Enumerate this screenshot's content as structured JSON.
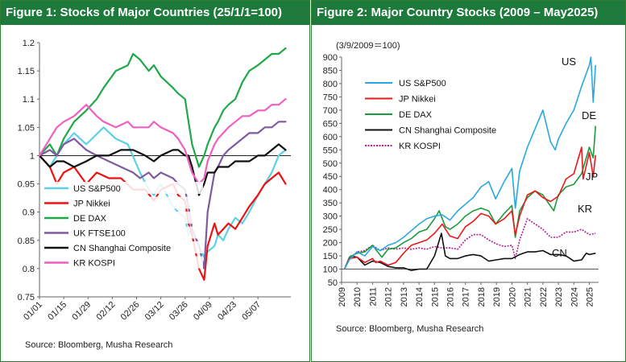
{
  "figures": [
    {
      "title": "Figure 1: Stocks of Major Countries (25/1/1=100)",
      "source": "Source: Bloomberg, Musha Research"
    },
    {
      "title": "Figure 2: Major Country Stocks (2009 – May2025)",
      "source": "Source: Bloomberg, Musha Research",
      "unit_note": "(3/9/2009＝100)"
    }
  ],
  "chart_data": [
    {
      "type": "line",
      "title": "Figure 1: Stocks of Major Countries (25/1/1=100)",
      "xlabel": "",
      "ylabel": "",
      "grid": false,
      "legend_placement": "bottom-left",
      "x_ticks": [
        "01/01",
        "01/15",
        "01/29",
        "02/12",
        "02/26",
        "03/12",
        "03/26",
        "04/09",
        "04/23",
        "05/07"
      ],
      "ylim": [
        0.75,
        1.2
      ],
      "y_ticks": [
        0.75,
        0.8,
        0.85,
        0.9,
        0.95,
        1,
        1.05,
        1.1,
        1.15,
        1.2
      ],
      "x_range_days": [
        0,
        145
      ],
      "baseline": 1,
      "series": [
        {
          "name": "US S&P500",
          "color": "#5bd0e6",
          "x": [
            0,
            6,
            14,
            20,
            27,
            37,
            44,
            51,
            58,
            63,
            66,
            70,
            77,
            80,
            84,
            86,
            88,
            92,
            95,
            97,
            101,
            103,
            106,
            109,
            113,
            117,
            121,
            126,
            130,
            134,
            138,
            142
          ],
          "y": [
            1.0,
            0.98,
            1.02,
            1.04,
            1.02,
            1.05,
            1.03,
            1.02,
            0.97,
            0.94,
            0.93,
            0.95,
            0.91,
            0.9,
            0.89,
            0.86,
            0.87,
            0.84,
            0.82,
            0.83,
            0.84,
            0.86,
            0.85,
            0.87,
            0.89,
            0.88,
            0.9,
            0.93,
            0.95,
            0.97,
            1.0,
            1.01
          ]
        },
        {
          "name": "JP Nikkei",
          "color": "#ee1111",
          "x": [
            0,
            6,
            10,
            14,
            20,
            27,
            33,
            40,
            47,
            54,
            61,
            66,
            70,
            77,
            80,
            84,
            86,
            88,
            92,
            95,
            97,
            101,
            103,
            106,
            109,
            113,
            117,
            121,
            126,
            130,
            134,
            138,
            142
          ],
          "y": [
            1.0,
            0.98,
            0.95,
            0.97,
            0.98,
            0.95,
            0.97,
            0.96,
            0.96,
            0.94,
            0.94,
            0.92,
            0.94,
            0.95,
            0.93,
            0.92,
            0.88,
            0.86,
            0.8,
            0.78,
            0.84,
            0.88,
            0.86,
            0.87,
            0.88,
            0.87,
            0.89,
            0.91,
            0.93,
            0.95,
            0.96,
            0.97,
            0.95
          ]
        },
        {
          "name": "DE DAX",
          "color": "#1fa84a",
          "x": [
            0,
            6,
            10,
            14,
            20,
            27,
            33,
            37,
            44,
            51,
            54,
            58,
            63,
            66,
            70,
            77,
            80,
            84,
            86,
            88,
            92,
            95,
            97,
            101,
            103,
            106,
            109,
            113,
            117,
            121,
            126,
            130,
            134,
            138,
            142
          ],
          "y": [
            1.0,
            1.02,
            1.0,
            1.03,
            1.06,
            1.08,
            1.1,
            1.12,
            1.15,
            1.16,
            1.18,
            1.17,
            1.15,
            1.16,
            1.14,
            1.12,
            1.11,
            1.1,
            1.06,
            1.02,
            0.98,
            1.0,
            1.02,
            1.05,
            1.06,
            1.08,
            1.09,
            1.1,
            1.13,
            1.15,
            1.16,
            1.17,
            1.18,
            1.18,
            1.19
          ]
        },
        {
          "name": "UK FTSE100",
          "color": "#7e5aa0",
          "x": [
            0,
            6,
            10,
            14,
            20,
            27,
            33,
            40,
            47,
            54,
            58,
            63,
            66,
            70,
            77,
            80,
            84,
            86,
            88,
            92,
            95,
            97,
            101,
            103,
            106,
            109,
            113,
            117,
            121,
            126,
            130,
            134,
            138,
            142
          ],
          "y": [
            1.0,
            1.01,
            1.0,
            1.02,
            1.03,
            1.01,
            1.0,
            0.99,
            0.98,
            0.97,
            0.96,
            0.97,
            0.96,
            0.97,
            0.96,
            0.95,
            0.94,
            0.91,
            0.87,
            0.84,
            0.8,
            0.9,
            0.97,
            0.98,
            1.0,
            1.01,
            1.02,
            1.03,
            1.04,
            1.04,
            1.05,
            1.05,
            1.06,
            1.06
          ]
        },
        {
          "name": "CN Shanghai Composite",
          "color": "#111111",
          "x": [
            0,
            6,
            10,
            14,
            20,
            27,
            33,
            40,
            47,
            54,
            61,
            66,
            70,
            77,
            80,
            84,
            86,
            88,
            92,
            95,
            97,
            101,
            103,
            106,
            109,
            113,
            117,
            121,
            126,
            130,
            134,
            138,
            142
          ],
          "y": [
            1.0,
            0.98,
            0.99,
            0.99,
            0.98,
            0.99,
            1.0,
            1.0,
            1.01,
            1.01,
            1.0,
            0.99,
            1.0,
            1.01,
            1.01,
            1.0,
            1.0,
            0.98,
            0.93,
            0.95,
            0.97,
            0.97,
            0.98,
            0.98,
            0.98,
            0.99,
            0.99,
            0.99,
            1.0,
            1.0,
            1.01,
            1.02,
            1.01
          ]
        },
        {
          "name": "KR KOSPI",
          "color": "#f05fc0",
          "x": [
            0,
            6,
            10,
            14,
            20,
            27,
            33,
            37,
            44,
            51,
            54,
            58,
            63,
            66,
            70,
            77,
            80,
            84,
            86,
            88,
            92,
            95,
            97,
            101,
            103,
            106,
            109,
            113,
            117,
            121,
            126,
            130,
            134,
            138,
            142
          ],
          "y": [
            1.0,
            1.03,
            1.05,
            1.06,
            1.07,
            1.09,
            1.07,
            1.06,
            1.05,
            1.06,
            1.05,
            1.05,
            1.05,
            1.06,
            1.05,
            1.04,
            1.03,
            1.01,
            0.99,
            0.97,
            0.95,
            0.96,
            0.99,
            1.02,
            1.03,
            1.04,
            1.05,
            1.06,
            1.07,
            1.07,
            1.08,
            1.08,
            1.09,
            1.09,
            1.1
          ]
        }
      ]
    },
    {
      "type": "line",
      "title": "Figure 2: Major Country Stocks (2009 – May2025)",
      "xlabel": "",
      "ylabel": "(3/9/2009＝100)",
      "grid": false,
      "legend_placement": "top-left",
      "x_ticks": [
        2009,
        2010,
        2011,
        2012,
        2013,
        2014,
        2015,
        2016,
        2017,
        2018,
        2019,
        2020,
        2021,
        2022,
        2023,
        2024,
        2025
      ],
      "xlim": [
        2009,
        2025.6
      ],
      "ylim": [
        50,
        900
      ],
      "y_ticks": [
        50,
        100,
        150,
        200,
        250,
        300,
        350,
        400,
        450,
        500,
        550,
        600,
        650,
        700,
        750,
        800,
        850,
        900
      ],
      "end_labels": [
        "US",
        "DE",
        "JP",
        "KR",
        "CN"
      ],
      "series": [
        {
          "name": "US S&P500",
          "color": "#29a8e0",
          "line_style": "solid",
          "end_label": "US",
          "x": [
            2009.18,
            2009.5,
            2010,
            2010.5,
            2011,
            2011.5,
            2012,
            2012.5,
            2013,
            2013.5,
            2014,
            2014.5,
            2015,
            2015.5,
            2016,
            2016.5,
            2017,
            2017.5,
            2018,
            2018.5,
            2018.95,
            2019.5,
            2020,
            2020.22,
            2020.5,
            2021,
            2021.5,
            2022,
            2022.5,
            2022.8,
            2023,
            2023.5,
            2024,
            2024.5,
            2025,
            2025.1,
            2025.25,
            2025.4
          ],
          "y": [
            100,
            135,
            165,
            150,
            185,
            170,
            190,
            200,
            220,
            245,
            270,
            290,
            300,
            305,
            285,
            320,
            345,
            370,
            410,
            430,
            365,
            430,
            480,
            330,
            470,
            560,
            630,
            700,
            580,
            550,
            590,
            650,
            700,
            790,
            870,
            900,
            730,
            870
          ]
        },
        {
          "name": "JP Nikkei",
          "color": "#e8191b",
          "line_style": "solid",
          "end_label": "JP",
          "x": [
            2009.18,
            2009.5,
            2010,
            2010.5,
            2011,
            2011.2,
            2011.5,
            2012,
            2012.5,
            2013,
            2013.5,
            2014,
            2014.5,
            2015,
            2015.5,
            2016,
            2016.5,
            2017,
            2017.5,
            2018,
            2018.5,
            2018.95,
            2019.5,
            2020,
            2020.22,
            2020.5,
            2021,
            2021.5,
            2022,
            2022.5,
            2023,
            2023.5,
            2024,
            2024.5,
            2024.6,
            2025,
            2025.25,
            2025.4
          ],
          "y": [
            100,
            140,
            145,
            125,
            140,
            125,
            130,
            115,
            125,
            160,
            190,
            200,
            210,
            235,
            270,
            225,
            215,
            260,
            280,
            310,
            300,
            270,
            290,
            320,
            230,
            300,
            380,
            395,
            370,
            355,
            375,
            440,
            460,
            560,
            440,
            540,
            450,
            530
          ]
        },
        {
          "name": "DE DAX",
          "color": "#1a9b3c",
          "line_style": "solid",
          "end_label": "DE",
          "x": [
            2009.18,
            2009.5,
            2010,
            2010.5,
            2011,
            2011.6,
            2012,
            2012.5,
            2013,
            2013.5,
            2014,
            2014.5,
            2015,
            2015.3,
            2015.7,
            2016,
            2016.5,
            2017,
            2017.5,
            2018,
            2018.5,
            2018.95,
            2019.5,
            2020,
            2020.22,
            2020.5,
            2021,
            2021.5,
            2022,
            2022.7,
            2023,
            2023.5,
            2024,
            2024.5,
            2025,
            2025.25,
            2025.4
          ],
          "y": [
            100,
            145,
            160,
            165,
            190,
            145,
            175,
            180,
            200,
            215,
            240,
            250,
            290,
            320,
            260,
            250,
            270,
            300,
            320,
            330,
            320,
            270,
            310,
            340,
            220,
            320,
            370,
            395,
            380,
            320,
            380,
            410,
            420,
            460,
            560,
            520,
            640
          ]
        },
        {
          "name": "CN Shanghai Composite",
          "color": "#111111",
          "line_style": "solid",
          "end_label": "CN",
          "x": [
            2009.18,
            2009.6,
            2010,
            2010.5,
            2011,
            2011.5,
            2012,
            2012.5,
            2013,
            2013.5,
            2014,
            2014.5,
            2015,
            2015.45,
            2015.7,
            2016,
            2016.5,
            2017,
            2017.5,
            2018,
            2018.5,
            2019,
            2019.5,
            2020,
            2020.5,
            2021,
            2021.5,
            2022,
            2022.5,
            2023,
            2023.5,
            2024,
            2024.5,
            2024.8,
            2025,
            2025.4
          ],
          "y": [
            100,
            150,
            145,
            115,
            130,
            125,
            110,
            105,
            105,
            95,
            100,
            100,
            150,
            235,
            150,
            140,
            140,
            150,
            155,
            150,
            130,
            135,
            140,
            140,
            155,
            165,
            165,
            170,
            155,
            155,
            150,
            130,
            135,
            160,
            155,
            160
          ]
        },
        {
          "name": "KR KOSPI",
          "color": "#b0208f",
          "line_style": "dotted",
          "end_label": "KR",
          "x": [
            2009.18,
            2009.5,
            2010,
            2010.5,
            2011,
            2011.5,
            2012,
            2012.5,
            2013,
            2013.5,
            2014,
            2014.5,
            2015,
            2015.5,
            2016,
            2016.5,
            2017,
            2017.5,
            2018,
            2018.5,
            2019,
            2019.5,
            2020,
            2020.22,
            2020.5,
            2021,
            2021.5,
            2022,
            2022.5,
            2023,
            2023.5,
            2024,
            2024.5,
            2025,
            2025.4
          ],
          "y": [
            100,
            140,
            165,
            170,
            190,
            170,
            180,
            175,
            180,
            175,
            180,
            175,
            185,
            180,
            180,
            175,
            210,
            230,
            230,
            210,
            195,
            185,
            190,
            140,
            210,
            290,
            270,
            250,
            220,
            220,
            240,
            240,
            250,
            230,
            235
          ]
        }
      ]
    }
  ]
}
